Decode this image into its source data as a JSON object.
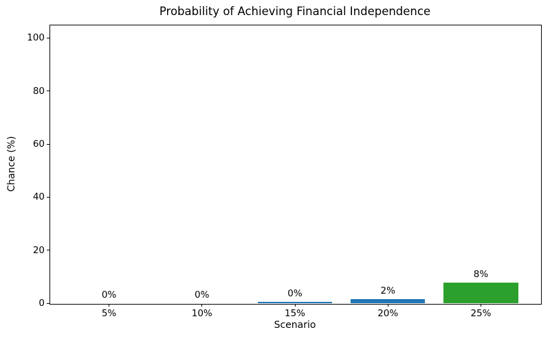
{
  "chart_data": {
    "type": "bar",
    "title": "Probability of Achieving Financial Independence",
    "xlabel": "Scenario",
    "ylabel": "Chance (%)",
    "categories": [
      "5%",
      "10%",
      "15%",
      "20%",
      "25%"
    ],
    "values": [
      0,
      0,
      0.4,
      1.5,
      7.7
    ],
    "bar_labels": [
      "0%",
      "0%",
      "0%",
      "2%",
      "8%"
    ],
    "bar_colors": [
      "#1f77b4",
      "#1f77b4",
      "#1f77b4",
      "#1f77b4",
      "#2ca02c"
    ],
    "yticks": [
      0,
      20,
      40,
      60,
      80,
      100
    ],
    "ylim": [
      0,
      105
    ],
    "grid": false,
    "legend_position": "none",
    "axis_color": "#000000",
    "background_color": "#ffffff"
  }
}
